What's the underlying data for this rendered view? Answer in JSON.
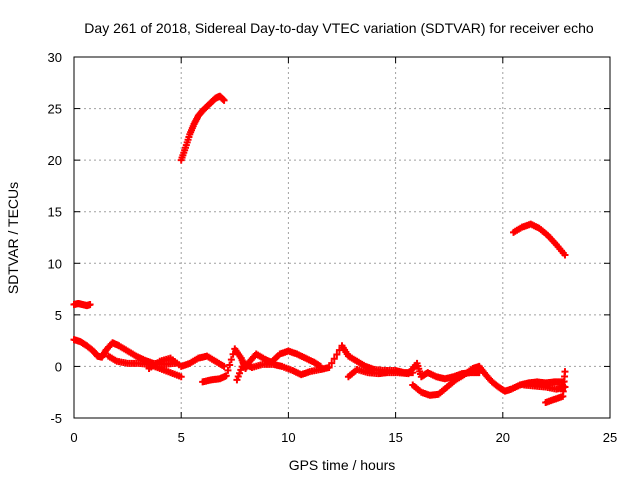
{
  "chart_data": {
    "type": "scatter",
    "title": "Day 261 of 2018, Sidereal Day-to-day VTEC variation (SDTVAR) for receiver echo",
    "xlabel": "GPS time / hours",
    "ylabel": "SDTVAR / TECUs",
    "xlim": [
      0,
      25
    ],
    "ylim": [
      -5,
      30
    ],
    "xticks": [
      0,
      5,
      10,
      15,
      20,
      25
    ],
    "yticks": [
      -5,
      0,
      5,
      10,
      15,
      20,
      25,
      30
    ],
    "xtick_labels": [
      "0",
      "5",
      "10",
      "15",
      "20",
      "25"
    ],
    "ytick_labels": [
      "-5",
      "0",
      "5",
      "10",
      "15",
      "20",
      "25",
      "30"
    ],
    "grid": true,
    "marker": "plus",
    "series": [
      {
        "name": "SDTVAR",
        "color": "#ff0000",
        "points": [
          [
            0.0,
            6.0
          ],
          [
            0.2,
            6.1
          ],
          [
            0.4,
            6.0
          ],
          [
            0.6,
            5.9
          ],
          [
            0.75,
            6.0
          ],
          [
            0.0,
            2.6
          ],
          [
            0.3,
            2.4
          ],
          [
            0.6,
            2.0
          ],
          [
            0.9,
            1.5
          ],
          [
            1.1,
            1.0
          ],
          [
            1.3,
            0.9
          ],
          [
            1.5,
            1.6
          ],
          [
            1.8,
            2.3
          ],
          [
            2.1,
            2.0
          ],
          [
            2.5,
            1.5
          ],
          [
            2.9,
            1.0
          ],
          [
            3.3,
            0.6
          ],
          [
            3.7,
            0.3
          ],
          [
            4.2,
            0.2
          ],
          [
            4.7,
            0.3
          ],
          [
            1.6,
            1.0
          ],
          [
            2.0,
            0.5
          ],
          [
            2.5,
            0.3
          ],
          [
            3.0,
            0.3
          ],
          [
            3.5,
            0.2
          ],
          [
            4.0,
            -0.2
          ],
          [
            4.5,
            -0.6
          ],
          [
            5.0,
            -1.0
          ],
          [
            3.5,
            -0.2
          ],
          [
            4.0,
            0.5
          ],
          [
            4.5,
            0.8
          ],
          [
            5.0,
            0.0
          ],
          [
            5.4,
            0.3
          ],
          [
            5.8,
            0.8
          ],
          [
            6.2,
            1.0
          ],
          [
            6.6,
            0.5
          ],
          [
            7.0,
            0.0
          ],
          [
            5.0,
            20.0
          ],
          [
            5.2,
            21.2
          ],
          [
            5.4,
            22.5
          ],
          [
            5.6,
            23.5
          ],
          [
            5.8,
            24.3
          ],
          [
            6.0,
            24.8
          ],
          [
            6.2,
            25.2
          ],
          [
            6.4,
            25.6
          ],
          [
            6.6,
            26.0
          ],
          [
            6.8,
            26.2
          ],
          [
            7.0,
            25.8
          ],
          [
            6.0,
            -1.5
          ],
          [
            6.4,
            -1.3
          ],
          [
            6.8,
            -1.2
          ],
          [
            7.1,
            -0.9
          ],
          [
            7.5,
            1.7
          ],
          [
            7.8,
            0.8
          ],
          [
            8.0,
            -0.2
          ],
          [
            8.2,
            0.5
          ],
          [
            8.5,
            1.2
          ],
          [
            8.9,
            0.7
          ],
          [
            9.2,
            0.4
          ],
          [
            9.6,
            1.2
          ],
          [
            10.0,
            1.5
          ],
          [
            10.4,
            1.2
          ],
          [
            10.8,
            0.8
          ],
          [
            11.2,
            0.4
          ],
          [
            11.5,
            0.0
          ],
          [
            7.6,
            -1.3
          ],
          [
            7.9,
            0.3
          ],
          [
            8.3,
            -0.1
          ],
          [
            8.8,
            0.2
          ],
          [
            9.3,
            0.2
          ],
          [
            9.7,
            0.0
          ],
          [
            10.2,
            -0.4
          ],
          [
            10.6,
            -0.8
          ],
          [
            11.0,
            -0.5
          ],
          [
            11.5,
            -0.3
          ],
          [
            11.9,
            -0.1
          ],
          [
            12.5,
            2.0
          ],
          [
            12.8,
            1.0
          ],
          [
            13.2,
            0.5
          ],
          [
            13.6,
            0.0
          ],
          [
            14.0,
            -0.3
          ],
          [
            14.5,
            -0.4
          ],
          [
            15.0,
            -0.4
          ],
          [
            15.4,
            -0.6
          ],
          [
            15.8,
            -0.6
          ],
          [
            12.8,
            -1.0
          ],
          [
            13.2,
            -0.3
          ],
          [
            13.7,
            -0.6
          ],
          [
            14.2,
            -0.7
          ],
          [
            14.6,
            -0.6
          ],
          [
            15.1,
            -0.6
          ],
          [
            15.6,
            -0.7
          ],
          [
            16.0,
            0.3
          ],
          [
            16.2,
            -1.0
          ],
          [
            16.5,
            -0.6
          ],
          [
            16.9,
            -1.0
          ],
          [
            17.3,
            -1.2
          ],
          [
            17.7,
            -1.0
          ],
          [
            18.1,
            -0.7
          ],
          [
            18.5,
            -0.6
          ],
          [
            18.9,
            -0.6
          ],
          [
            15.8,
            -1.8
          ],
          [
            16.2,
            -2.5
          ],
          [
            16.6,
            -2.8
          ],
          [
            17.0,
            -2.7
          ],
          [
            17.4,
            -2.0
          ],
          [
            17.8,
            -1.3
          ],
          [
            18.2,
            -0.8
          ],
          [
            18.6,
            -0.2
          ],
          [
            18.9,
            0.0
          ],
          [
            19.2,
            -0.8
          ],
          [
            19.5,
            -1.5
          ],
          [
            19.8,
            -2.0
          ],
          [
            20.1,
            -2.4
          ],
          [
            20.4,
            -2.2
          ],
          [
            20.8,
            -1.8
          ],
          [
            21.2,
            -1.6
          ],
          [
            21.6,
            -1.5
          ],
          [
            22.0,
            -1.6
          ],
          [
            22.4,
            -1.5
          ],
          [
            22.8,
            -1.5
          ],
          [
            20.5,
            13.0
          ],
          [
            20.9,
            13.5
          ],
          [
            21.3,
            13.8
          ],
          [
            21.7,
            13.4
          ],
          [
            22.1,
            12.7
          ],
          [
            22.5,
            11.8
          ],
          [
            22.9,
            10.8
          ],
          [
            21.0,
            -1.8
          ],
          [
            21.5,
            -1.9
          ],
          [
            22.0,
            -2.0
          ],
          [
            22.5,
            -2.2
          ],
          [
            22.9,
            -2.0
          ],
          [
            22.0,
            -3.5
          ],
          [
            22.4,
            -3.2
          ],
          [
            22.8,
            -2.9
          ],
          [
            22.9,
            -0.5
          ]
        ]
      }
    ]
  }
}
